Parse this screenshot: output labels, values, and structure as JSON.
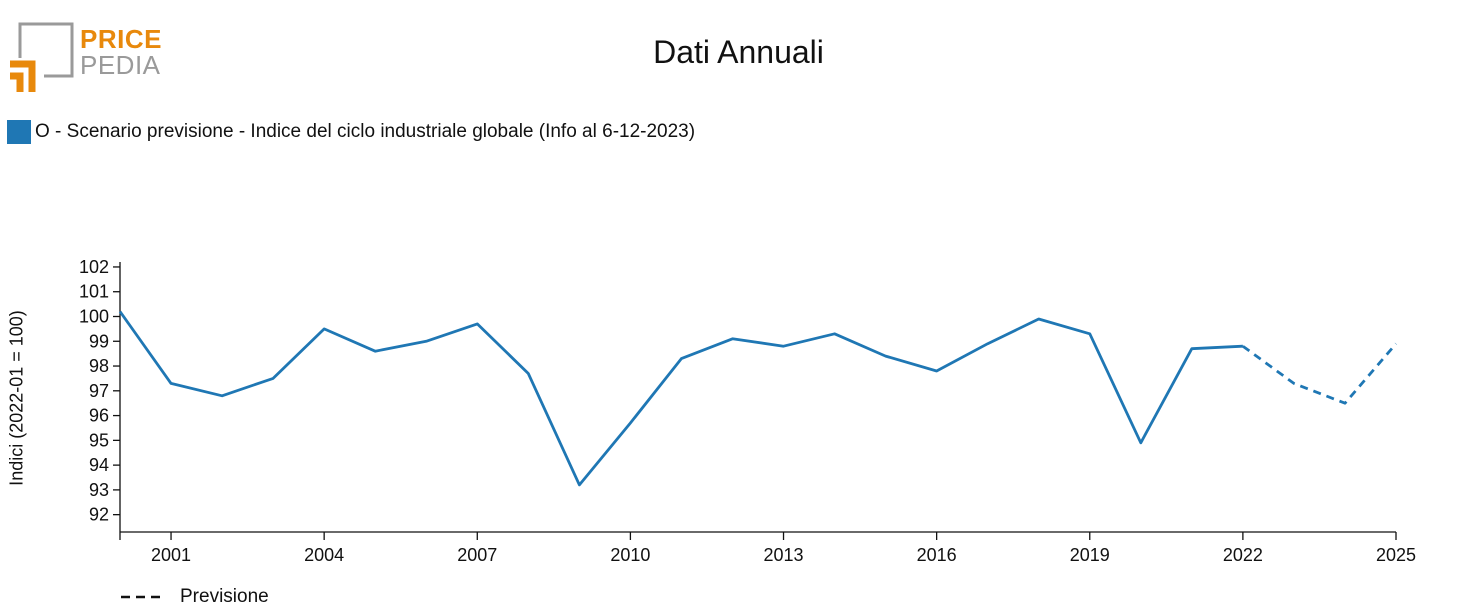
{
  "logo": {
    "line1": "PRICE",
    "line2": "PEDIA",
    "primary_color": "#e8890c",
    "secondary_color": "#9a9a9a"
  },
  "chart_data": {
    "type": "line",
    "title": "Dati Annuali",
    "ylabel": "Indici (2022-01 = 100)",
    "xlabel": "",
    "legend_placement": "top-left",
    "grid": false,
    "xlim": [
      2000,
      2025
    ],
    "ylim": [
      91.3,
      102.2
    ],
    "x_ticks": [
      2001,
      2004,
      2007,
      2010,
      2013,
      2016,
      2019,
      2022,
      2025
    ],
    "y_ticks": [
      92,
      93,
      94,
      95,
      96,
      97,
      98,
      99,
      100,
      101,
      102
    ],
    "series": [
      {
        "name": "O - Scenario previsione - Indice del ciclo industriale globale (Info al 6-12-2023)",
        "color": "#1f77b4",
        "x": [
          2000,
          2001,
          2002,
          2003,
          2004,
          2005,
          2006,
          2007,
          2008,
          2009,
          2010,
          2011,
          2012,
          2013,
          2014,
          2015,
          2016,
          2017,
          2018,
          2019,
          2020,
          2021,
          2022
        ],
        "values": [
          100.2,
          97.3,
          96.8,
          97.5,
          99.5,
          98.6,
          99.0,
          99.7,
          97.7,
          93.2,
          95.7,
          98.3,
          99.1,
          98.8,
          99.3,
          98.4,
          97.8,
          98.9,
          99.9,
          99.3,
          94.9,
          98.7,
          98.8
        ]
      },
      {
        "name": "Previsione",
        "color": "#1f77b4",
        "dashed": true,
        "x": [
          2022,
          2023,
          2024,
          2025
        ],
        "values": [
          98.8,
          97.3,
          96.5,
          98.9
        ]
      }
    ],
    "forecast_legend": {
      "label": "Previsione",
      "placement": "bottom-left"
    }
  }
}
